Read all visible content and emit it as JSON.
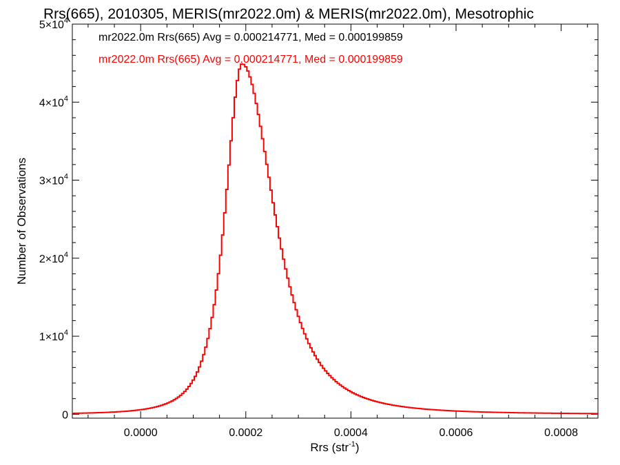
{
  "chart_data": {
    "type": "histogram",
    "title": "Rrs(665), 2010305, MERIS(mr2022.0m) & MERIS(mr2022.0m), Mesotrophic",
    "xlabel": {
      "base": "Rrs (str",
      "sup": "-1",
      "end": ")"
    },
    "ylabel": "Number of Observations",
    "xlim": [
      -0.00013,
      0.00087
    ],
    "ylim": [
      -500,
      50000
    ],
    "x_ticks": [
      {
        "value": 0.0,
        "label": "0.0000"
      },
      {
        "value": 0.0002,
        "label": "0.0002"
      },
      {
        "value": 0.0004,
        "label": "0.0004"
      },
      {
        "value": 0.0006,
        "label": "0.0006"
      },
      {
        "value": 0.0008,
        "label": "0.0008"
      }
    ],
    "y_ticks": [
      {
        "value": 0,
        "mant": "0",
        "exp": ""
      },
      {
        "value": 10000,
        "mant": "1×10",
        "exp": "4"
      },
      {
        "value": 20000,
        "mant": "2×10",
        "exp": "4"
      },
      {
        "value": 30000,
        "mant": "3×10",
        "exp": "4"
      },
      {
        "value": 40000,
        "mant": "4×10",
        "exp": "4"
      },
      {
        "value": 50000,
        "mant": "5×10",
        "exp": "4"
      }
    ],
    "stats": [
      {
        "text": "mr2022.0m Rrs(665) Avg = 0.000214771, Med = 0.000199859",
        "color": "#000000"
      },
      {
        "text": "mr2022.0m Rrs(665) Avg = 0.000214771, Med = 0.000199859",
        "color": "#ff0000"
      }
    ],
    "series": [
      {
        "color": "#ff0000",
        "peak_center": 0.000193,
        "peak_count": 44900,
        "left_width": 4.5e-05,
        "right_width": 8.5e-05,
        "bin_width": 4e-06
      }
    ]
  }
}
